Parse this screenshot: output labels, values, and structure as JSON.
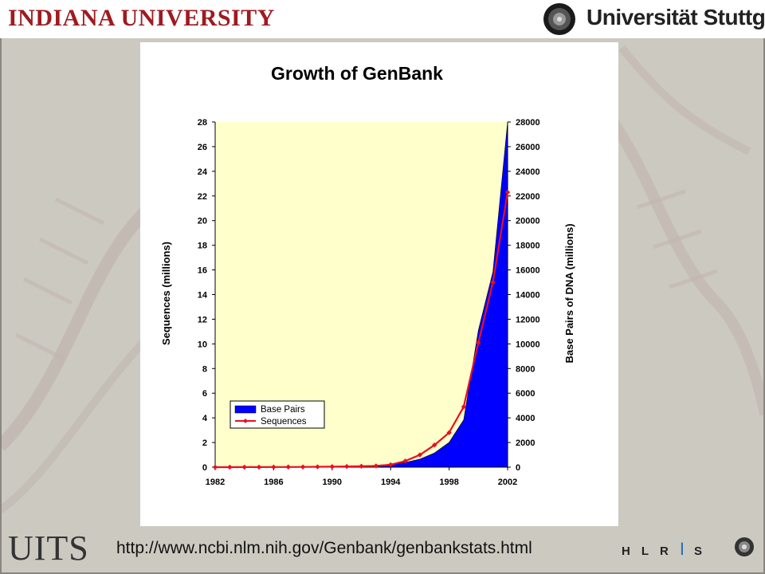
{
  "header": {
    "left_logo_text": "Indiana University",
    "right_logo_text": "Universität Stuttgart"
  },
  "footer": {
    "left_logo_text": "UITS",
    "url": "http://www.ncbi.nlm.nih.gov/Genbank/genbankstats.html",
    "right_logo_text": [
      "H",
      "L",
      "R",
      "I",
      "S"
    ]
  },
  "colors": {
    "base_pairs_fill": "#0000ff",
    "sequences_line": "#e8101f",
    "plot_background": "#ffffcc",
    "brand_iu": "#9e1b20"
  },
  "chart_data": {
    "type": "area",
    "title": "Growth of GenBank",
    "ylabel": "Sequences (millions)",
    "y2label": "Base Pairs of DNA (millions)",
    "xlim": [
      1982,
      2002
    ],
    "ylim": [
      0,
      28
    ],
    "y2lim": [
      0,
      28000
    ],
    "x_ticks": [
      1982,
      1986,
      1990,
      1994,
      1998,
      2002
    ],
    "y_ticks": [
      0,
      2,
      4,
      6,
      8,
      10,
      12,
      14,
      16,
      18,
      20,
      22,
      24,
      26,
      28
    ],
    "y2_ticks": [
      0,
      2000,
      4000,
      6000,
      8000,
      10000,
      12000,
      14000,
      16000,
      18000,
      20000,
      22000,
      24000,
      26000,
      28000
    ],
    "legend": {
      "position": "lower-left",
      "entries": [
        "Base Pairs",
        "Sequences"
      ]
    },
    "series": [
      {
        "name": "Base Pairs",
        "axis": "right",
        "kind": "area",
        "x": [
          1982,
          1983,
          1984,
          1985,
          1986,
          1987,
          1988,
          1989,
          1990,
          1991,
          1992,
          1993,
          1994,
          1995,
          1996,
          1997,
          1998,
          1999,
          2000,
          2001,
          2002
        ],
        "values": [
          0.7,
          2,
          4,
          6,
          10,
          16,
          25,
          35,
          50,
          72,
          101,
          157,
          217,
          384,
          652,
          1160,
          2009,
          3841,
          11101,
          15850,
          28508
        ]
      },
      {
        "name": "Sequences",
        "axis": "left",
        "kind": "line",
        "x": [
          1982,
          1983,
          1984,
          1985,
          1986,
          1987,
          1988,
          1989,
          1990,
          1991,
          1992,
          1993,
          1994,
          1995,
          1996,
          1997,
          1998,
          1999,
          2000,
          2001,
          2002
        ],
        "values": [
          0.001,
          0.002,
          0.004,
          0.006,
          0.01,
          0.016,
          0.02,
          0.03,
          0.04,
          0.06,
          0.08,
          0.1,
          0.2,
          0.5,
          1.0,
          1.8,
          2.8,
          4.9,
          10.1,
          15.0,
          22.3
        ]
      }
    ]
  }
}
